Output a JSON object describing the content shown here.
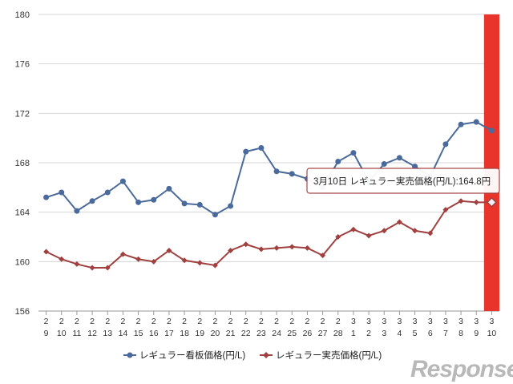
{
  "chart_data": {
    "type": "line",
    "ylim": [
      156,
      180
    ],
    "yticks": [
      "156",
      "160",
      "164",
      "168",
      "172",
      "176",
      "180"
    ],
    "categories": [
      [
        "2",
        "9"
      ],
      [
        "2",
        "10"
      ],
      [
        "2",
        "11"
      ],
      [
        "2",
        "12"
      ],
      [
        "2",
        "13"
      ],
      [
        "2",
        "14"
      ],
      [
        "2",
        "15"
      ],
      [
        "2",
        "16"
      ],
      [
        "2",
        "17"
      ],
      [
        "2",
        "18"
      ],
      [
        "2",
        "19"
      ],
      [
        "2",
        "20"
      ],
      [
        "2",
        "21"
      ],
      [
        "2",
        "22"
      ],
      [
        "2",
        "23"
      ],
      [
        "2",
        "24"
      ],
      [
        "2",
        "25"
      ],
      [
        "2",
        "26"
      ],
      [
        "2",
        "27"
      ],
      [
        "2",
        "28"
      ],
      [
        "3",
        "1"
      ],
      [
        "3",
        "2"
      ],
      [
        "3",
        "3"
      ],
      [
        "3",
        "4"
      ],
      [
        "3",
        "5"
      ],
      [
        "3",
        "6"
      ],
      [
        "3",
        "7"
      ],
      [
        "3",
        "8"
      ],
      [
        "3",
        "9"
      ],
      [
        "3",
        "10"
      ]
    ],
    "series": [
      {
        "name": "レギュラー看板価格(円/L)",
        "color": "#4a6a9c",
        "marker": "circle",
        "values": [
          165.2,
          165.6,
          164.1,
          164.9,
          165.6,
          166.5,
          164.8,
          165.0,
          165.9,
          164.7,
          164.6,
          163.8,
          164.5,
          168.9,
          169.2,
          167.3,
          167.1,
          166.7,
          166.0,
          168.1,
          168.8,
          166.5,
          167.9,
          168.4,
          167.7,
          166.9,
          169.5,
          171.1,
          171.3,
          170.6
        ]
      },
      {
        "name": "レギュラー実売価格(円/L)",
        "color": "#a0403f",
        "marker": "diamond",
        "values": [
          160.8,
          160.2,
          159.8,
          159.5,
          159.5,
          160.6,
          160.2,
          160.0,
          160.9,
          160.1,
          159.9,
          159.7,
          160.9,
          161.4,
          161.0,
          161.1,
          161.2,
          161.1,
          160.5,
          162.0,
          162.6,
          162.1,
          162.5,
          163.2,
          162.5,
          162.3,
          164.2,
          164.9,
          164.8,
          164.8
        ]
      }
    ],
    "highlight": {
      "index": 29,
      "color": "#e8342a"
    },
    "tooltip": {
      "text": "3月10日 レギュラー実売価格(円/L):164.8円"
    },
    "legend": {
      "position": "bottom"
    }
  },
  "watermark": {
    "text": "Response."
  }
}
